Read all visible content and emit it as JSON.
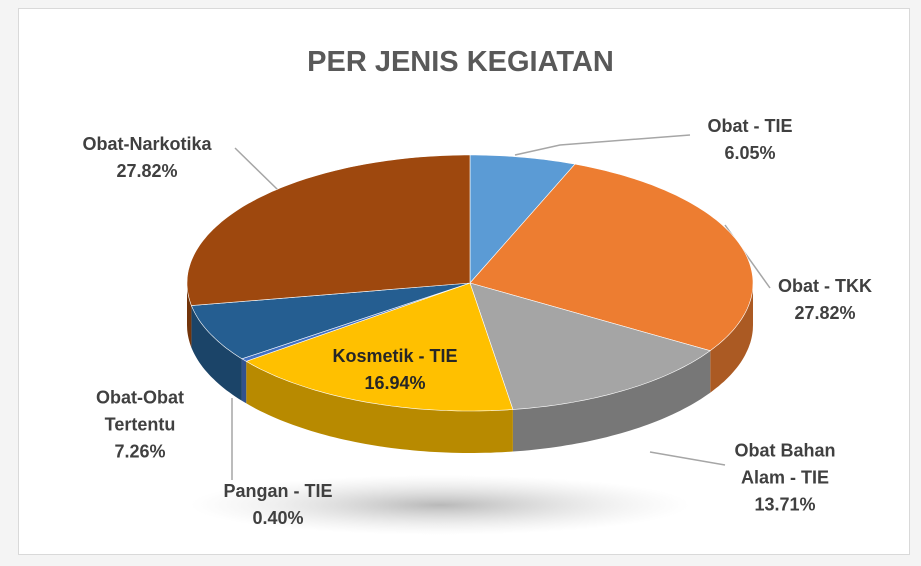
{
  "chart_data": {
    "type": "pie",
    "title": "PER JENIS KEGIATAN",
    "categories": [
      "Obat - TIE",
      "Obat - TKK",
      "Obat Bahan Alam - TIE",
      "Kosmetik - TIE",
      "Pangan - TIE",
      "Obat-Obat Tertentu",
      "Obat-Narkotika"
    ],
    "values": [
      6.05,
      27.82,
      13.71,
      16.94,
      0.4,
      7.26,
      27.82
    ],
    "value_labels": [
      "6.05%",
      "27.82%",
      "13.71%",
      "16.94%",
      "0.40%",
      "7.26%",
      "27.82%"
    ],
    "colors": [
      "#5b9bd5",
      "#ed7d31",
      "#a5a5a5",
      "#ffc000",
      "#4472c4",
      "#255e91",
      "#9e480e"
    ]
  }
}
